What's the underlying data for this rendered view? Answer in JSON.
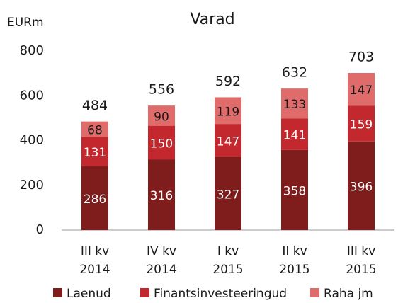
{
  "chart_data": {
    "type": "stacked_bar",
    "title": "Varad",
    "y_label": "EURm",
    "categories": [
      [
        "III kv",
        "2014"
      ],
      [
        "IV kv",
        "2014"
      ],
      [
        "I kv",
        "2015"
      ],
      [
        "II kv",
        "2015"
      ],
      [
        "III kv",
        "2015"
      ]
    ],
    "series": [
      {
        "name": "Laenud",
        "color": "#7f1d1d",
        "label_color": "#ffffff",
        "values": [
          286,
          316,
          327,
          358,
          396
        ]
      },
      {
        "name": "Finantsinvesteeringud",
        "color": "#c3282e",
        "label_color": "#ffffff",
        "values": [
          131,
          150,
          147,
          141,
          159
        ]
      },
      {
        "name": "Raha jm",
        "color": "#e06b6b",
        "label_color": "#1a1a1a",
        "values": [
          68,
          90,
          119,
          133,
          147
        ]
      }
    ],
    "totals": [
      484,
      556,
      592,
      632,
      703
    ],
    "ylim": [
      0,
      800
    ],
    "yticks": [
      0,
      200,
      400,
      600,
      800
    ],
    "grid": false
  }
}
